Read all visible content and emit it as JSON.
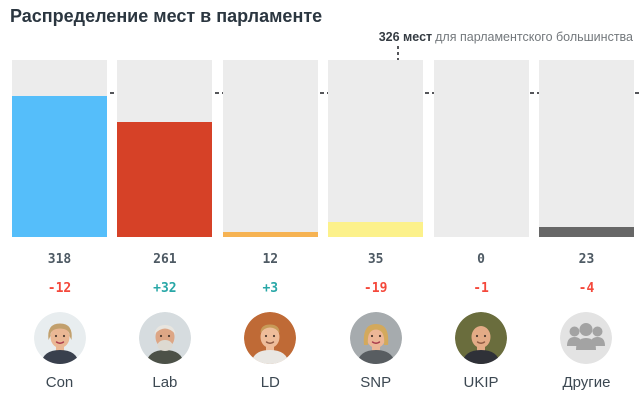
{
  "header": {
    "title": "Распределение мест в парламенте"
  },
  "theme": {
    "background": "#ffffff",
    "title_color": "#2b3640",
    "track_color": "#ececec",
    "dash_color": "#55565a",
    "value_color": "#4e5a64",
    "positive_color": "#28a7a7",
    "negative_color": "#f4483b",
    "party_label_color": "#3c4852"
  },
  "chart_data": {
    "type": "bar",
    "title": "Распределение мест в парламенте",
    "xlabel": "",
    "ylabel": "",
    "ylim": [
      0,
      400
    ],
    "grid": false,
    "legend": "none",
    "majority_line": {
      "value": 326,
      "bold_label": "326 мест",
      "label_rest": "для парламентского большинства"
    },
    "categories": [
      "Con",
      "Lab",
      "LD",
      "SNP",
      "UKIP",
      "Другие"
    ],
    "series": [
      {
        "name": "seats",
        "values": [
          318,
          261,
          12,
          35,
          0,
          23
        ]
      },
      {
        "name": "change",
        "values": [
          -12,
          32,
          3,
          -19,
          -1,
          -4
        ]
      }
    ],
    "parties": [
      {
        "label": "Con",
        "seats": "318",
        "change": "-12",
        "direction": "negative",
        "bar_color": "#55befa",
        "avatar_icon": "conservative-leader-photo",
        "avatar": {
          "style": "woman-short",
          "bg": "#e8edef",
          "skin": "#eab794",
          "hair": "#c2a06d",
          "shirt": "#39404d",
          "mouth": "#a93b4d"
        }
      },
      {
        "label": "Lab",
        "seats": "261",
        "change": "+32",
        "direction": "positive",
        "bar_color": "#d64127",
        "avatar_icon": "labour-leader-photo",
        "avatar": {
          "style": "man-beard",
          "bg": "#d6dcdf",
          "skin": "#dda685",
          "hair": "#e8e5df",
          "beard": "#ddd9d1",
          "shirt": "#4c5148"
        }
      },
      {
        "label": "LD",
        "seats": "12",
        "change": "+3",
        "direction": "positive",
        "bar_color": "#f6b353",
        "avatar_icon": "libdem-leader-photo",
        "avatar": {
          "style": "man-short",
          "bg": "#bf6a36",
          "skin": "#eebd9a",
          "hair": "#c79a58",
          "shirt": "#e9e7e3",
          "mouth": "#8d5a43"
        }
      },
      {
        "label": "SNP",
        "seats": "35",
        "change": "-19",
        "direction": "negative",
        "bar_color": "#fcf18b",
        "avatar_icon": "snp-leader-photo",
        "avatar": {
          "style": "woman-bob",
          "bg": "#a6abae",
          "skin": "#ecb696",
          "hair": "#d3a95c",
          "shirt": "#585d61",
          "mouth": "#a93b4d"
        }
      },
      {
        "label": "UKIP",
        "seats": "0",
        "change": "-1",
        "direction": "negative",
        "bar_color": null,
        "avatar_icon": "ukip-leader-photo",
        "avatar": {
          "style": "man-bald",
          "bg": "#6a6d3d",
          "skin": "#e3ab86",
          "shirt": "#2f3138",
          "mouth": "#8d5a43"
        }
      },
      {
        "label": "Другие",
        "seats": "23",
        "change": "-4",
        "direction": "negative",
        "bar_color": "#676767",
        "avatar_icon": "others-group-icon",
        "avatar": {
          "style": "group",
          "bg": "#e3e3e3",
          "icon": "#a3a3a3"
        }
      }
    ]
  }
}
